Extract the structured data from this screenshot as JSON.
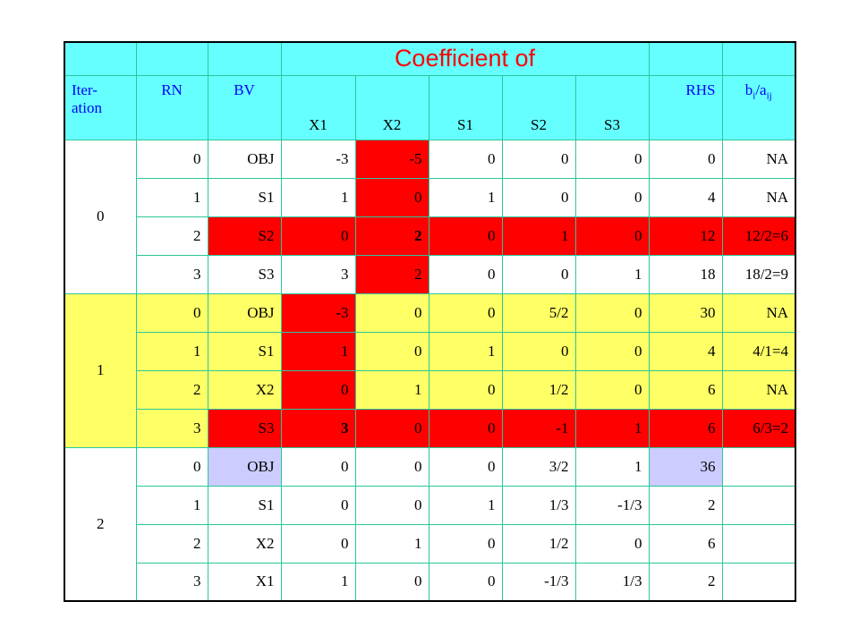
{
  "title": "Coefficient of",
  "headers": {
    "iteration": "Iter-\nation",
    "rn": "RN",
    "bv": "BV",
    "x1": "X1",
    "x2": "X2",
    "s1": "S1",
    "s2": "S2",
    "s3": "S3",
    "rhs": "RHS",
    "ratio_base": "b",
    "ratio_sub_i": "i",
    "ratio_slash": "/a",
    "ratio_sub_ij": "ij"
  },
  "iterations": [
    {
      "label": "0",
      "rows": [
        {
          "rn": "0",
          "bv": "OBJ",
          "x1": "-3",
          "x2": "-5",
          "s1": "0",
          "s2": "0",
          "s3": "0",
          "rhs": "0",
          "ratio": "NA"
        },
        {
          "rn": "1",
          "bv": "S1",
          "x1": "1",
          "x2": "0",
          "s1": "1",
          "s2": "0",
          "s3": "0",
          "rhs": "4",
          "ratio": "NA"
        },
        {
          "rn": "2",
          "bv": "S2",
          "x1": "0",
          "x2": "2",
          "s1": "0",
          "s2": "1",
          "s3": "0",
          "rhs": "12",
          "ratio": "12/2=6"
        },
        {
          "rn": "3",
          "bv": "S3",
          "x1": "3",
          "x2": "2",
          "s1": "0",
          "s2": "0",
          "s3": "1",
          "rhs": "18",
          "ratio": "18/2=9"
        }
      ]
    },
    {
      "label": "1",
      "rows": [
        {
          "rn": "0",
          "bv": "OBJ",
          "x1": "-3",
          "x2": "0",
          "s1": "0",
          "s2": "5/2",
          "s3": "0",
          "rhs": "30",
          "ratio": "NA"
        },
        {
          "rn": "1",
          "bv": "S1",
          "x1": "1",
          "x2": "0",
          "s1": "1",
          "s2": "0",
          "s3": "0",
          "rhs": "4",
          "ratio": "4/1=4"
        },
        {
          "rn": "2",
          "bv": "X2",
          "x1": "0",
          "x2": "1",
          "s1": "0",
          "s2": "1/2",
          "s3": "0",
          "rhs": "6",
          "ratio": "NA"
        },
        {
          "rn": "3",
          "bv": "S3",
          "x1": "3",
          "x2": "0",
          "s1": "0",
          "s2": "-1",
          "s3": "1",
          "rhs": "6",
          "ratio": "6/3=2"
        }
      ]
    },
    {
      "label": "2",
      "rows": [
        {
          "rn": "0",
          "bv": "OBJ",
          "x1": "0",
          "x2": "0",
          "s1": "0",
          "s2": "3/2",
          "s3": "1",
          "rhs": "36",
          "ratio": ""
        },
        {
          "rn": "1",
          "bv": "S1",
          "x1": "0",
          "x2": "0",
          "s1": "1",
          "s2": "1/3",
          "s3": "-1/3",
          "rhs": "2",
          "ratio": ""
        },
        {
          "rn": "2",
          "bv": "X2",
          "x1": "0",
          "x2": "1",
          "s1": "0",
          "s2": "1/2",
          "s3": "0",
          "rhs": "6",
          "ratio": ""
        },
        {
          "rn": "3",
          "bv": "X1",
          "x1": "1",
          "x2": "0",
          "s1": "0",
          "s2": "-1/3",
          "s3": "1/3",
          "rhs": "2",
          "ratio": ""
        }
      ]
    }
  ],
  "colors": {
    "header_cyan": "#66ffff",
    "pivot_red": "#ff0000",
    "iteration1_yellow": "#ffff66",
    "final_lavender": "#ccccff",
    "grid_green": "#2bc79a",
    "title_red": "#ff0000",
    "header_blue": "#0000ff"
  }
}
